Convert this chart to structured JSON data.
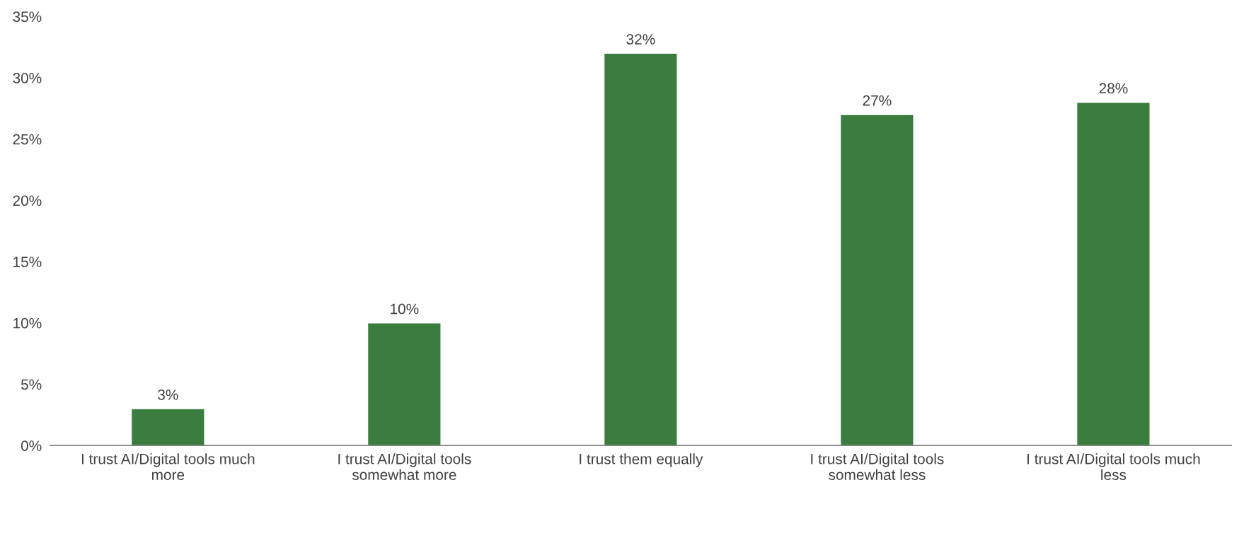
{
  "chart_data": {
    "type": "bar",
    "categories": [
      "I trust AI/Digital tools much\nmore",
      "I trust AI/Digital tools\nsomewhat more",
      "I trust them equally",
      "I trust AI/Digital tools\nsomewhat less",
      "I trust AI/Digital tools much\nless"
    ],
    "values": [
      3,
      10,
      32,
      27,
      28
    ],
    "value_labels": [
      "3%",
      "10%",
      "32%",
      "27%",
      "28%"
    ],
    "color": "#3a7d3f",
    "ylim": [
      0,
      35
    ],
    "yticks": [
      {
        "value": 0,
        "label": "0%"
      },
      {
        "value": 5,
        "label": "5%"
      },
      {
        "value": 10,
        "label": "10%"
      },
      {
        "value": 15,
        "label": "15%"
      },
      {
        "value": 20,
        "label": "20%"
      },
      {
        "value": 25,
        "label": "25%"
      },
      {
        "value": 30,
        "label": "30%"
      },
      {
        "value": 35,
        "label": "35%"
      }
    ],
    "grid": false,
    "legend": false
  }
}
